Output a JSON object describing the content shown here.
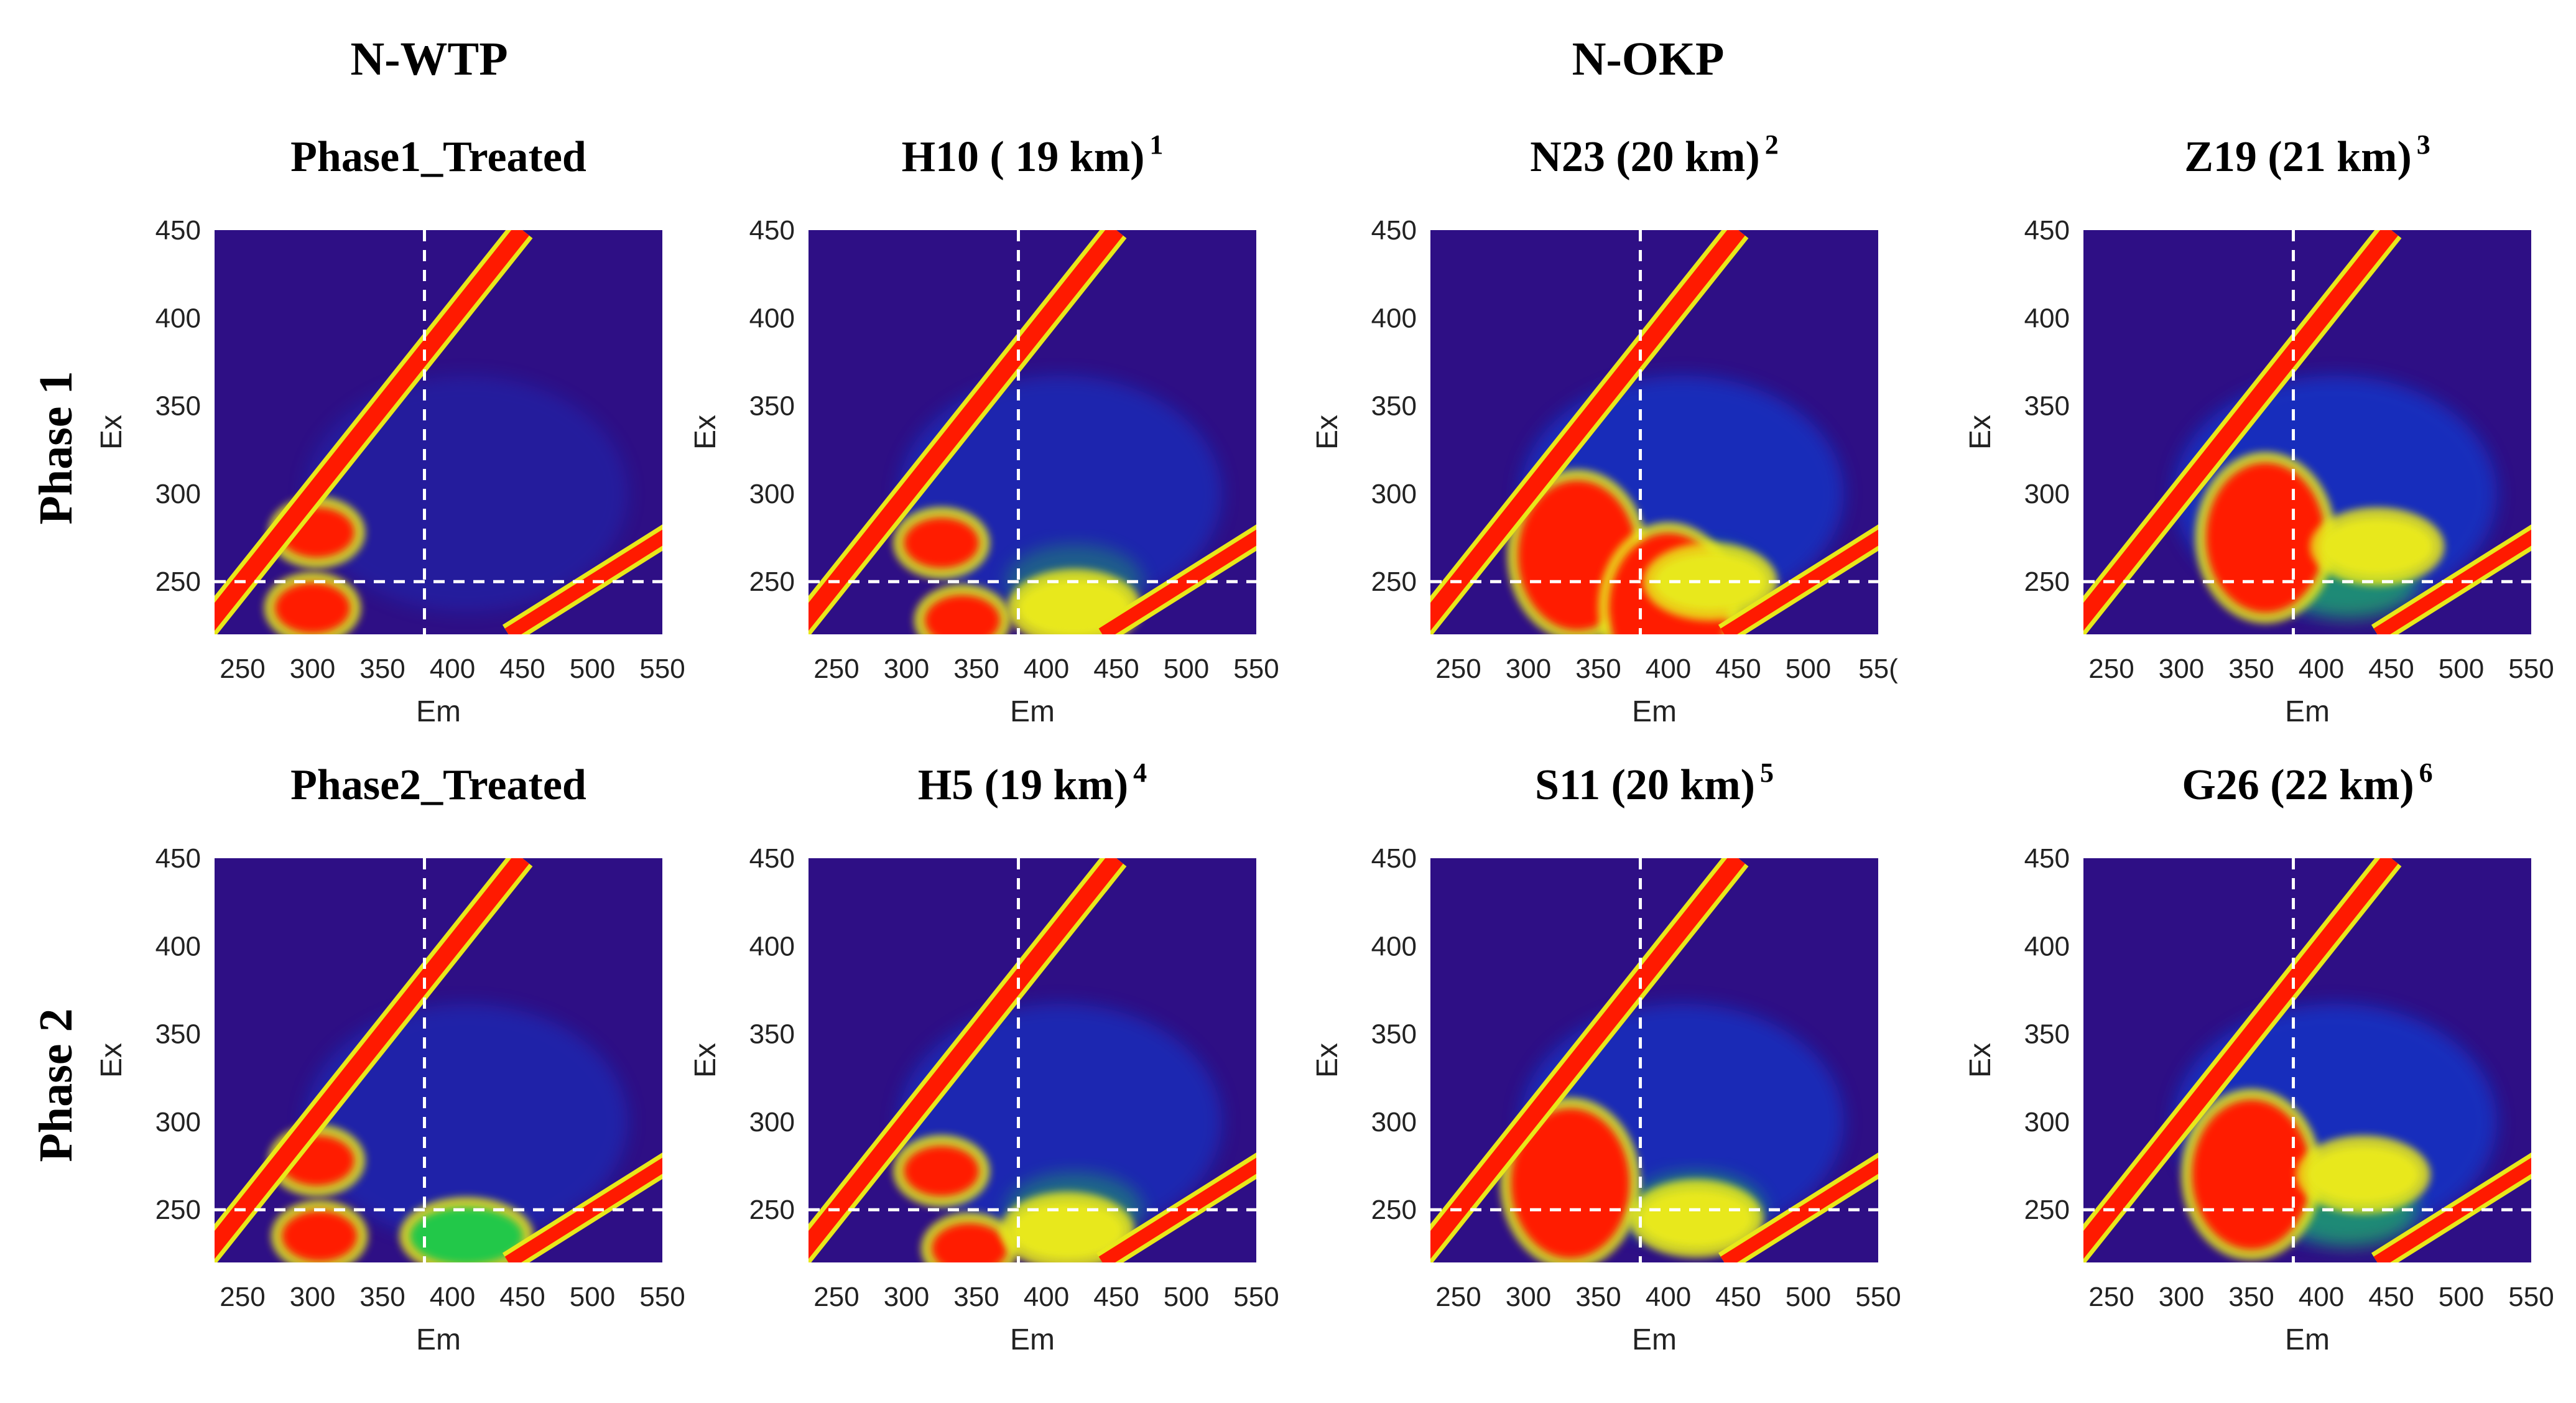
{
  "figure": {
    "group_headers": [
      "N-WTP",
      "N-OKP"
    ],
    "row_labels": [
      "Phase 1",
      "Phase 2"
    ],
    "colors": {
      "background": "#2e0f85",
      "blue": "#0a3cd8",
      "green": "#22c84a",
      "yellow": "#e8e81a",
      "red": "#ff1a00",
      "guide": "#ffffff"
    }
  },
  "chart_data": [
    {
      "type": "heatmap",
      "title": "Phase1_Treated",
      "superscript": "",
      "row": 1,
      "col": 1,
      "xlabel": "Em",
      "ylabel": "Ex",
      "xlim": [
        230,
        550
      ],
      "ylim": [
        220,
        450
      ],
      "xticks": [
        "250",
        "300",
        "350",
        "400",
        "450",
        "500",
        "550"
      ],
      "yticks": [
        "250",
        "300",
        "350",
        "400",
        "450"
      ],
      "guide_lines": {
        "em": 380,
        "ex": 250
      },
      "humic_intensity": 0.05,
      "peaks": [
        {
          "em": 303,
          "ex": 278,
          "level": "red"
        },
        {
          "em": 300,
          "ex": 235,
          "level": "red"
        }
      ]
    },
    {
      "type": "heatmap",
      "title": "H10  ( 19 km)",
      "superscript": "1",
      "row": 1,
      "col": 2,
      "xlabel": "Em",
      "ylabel": "Ex",
      "xlim": [
        230,
        550
      ],
      "ylim": [
        220,
        450
      ],
      "xticks": [
        "250",
        "300",
        "350",
        "400",
        "450",
        "500",
        "550"
      ],
      "yticks": [
        "250",
        "300",
        "350",
        "400",
        "450"
      ],
      "guide_lines": {
        "em": 380,
        "ex": 250
      },
      "humic_intensity": 0.35,
      "peaks": [
        {
          "em": 325,
          "ex": 272,
          "level": "red"
        },
        {
          "em": 340,
          "ex": 228,
          "level": "red"
        },
        {
          "em": 420,
          "ex": 235,
          "level": "yellow"
        }
      ]
    },
    {
      "type": "heatmap",
      "title": "N23  (20 km)",
      "superscript": "2",
      "row": 1,
      "col": 3,
      "xlabel": "Em",
      "ylabel": "Ex",
      "xlim": [
        230,
        550
      ],
      "ylim": [
        220,
        450
      ],
      "xticks": [
        "250",
        "300",
        "350",
        "400",
        "450",
        "500",
        "55("
      ],
      "yticks": [
        "250",
        "300",
        "350",
        "400",
        "450"
      ],
      "guide_lines": {
        "em": 380,
        "ex": 250
      },
      "humic_intensity": 0.55,
      "peaks": [
        {
          "em": 335,
          "ex": 265,
          "level": "red"
        },
        {
          "em": 400,
          "ex": 235,
          "level": "red"
        },
        {
          "em": 430,
          "ex": 250,
          "level": "yellow"
        }
      ]
    },
    {
      "type": "heatmap",
      "title": "Z19  (21 km)",
      "superscript": "3",
      "row": 1,
      "col": 4,
      "xlabel": "Em",
      "ylabel": "Ex",
      "xlim": [
        230,
        550
      ],
      "ylim": [
        220,
        450
      ],
      "xticks": [
        "250",
        "300",
        "350",
        "400",
        "450",
        "500",
        "550"
      ],
      "yticks": [
        "250",
        "300",
        "350",
        "400",
        "450"
      ],
      "guide_lines": {
        "em": 380,
        "ex": 250
      },
      "humic_intensity": 0.6,
      "peaks": [
        {
          "em": 360,
          "ex": 275,
          "level": "red"
        },
        {
          "em": 440,
          "ex": 270,
          "level": "yellow"
        }
      ]
    },
    {
      "type": "heatmap",
      "title": "Phase2_Treated",
      "superscript": "",
      "row": 2,
      "col": 1,
      "xlabel": "Em",
      "ylabel": "Ex",
      "xlim": [
        230,
        550
      ],
      "ylim": [
        220,
        450
      ],
      "xticks": [
        "250",
        "300",
        "350",
        "400",
        "450",
        "500",
        "550"
      ],
      "yticks": [
        "250",
        "300",
        "350",
        "400",
        "450"
      ],
      "guide_lines": {
        "em": 380,
        "ex": 250
      },
      "humic_intensity": 0.25,
      "peaks": [
        {
          "em": 303,
          "ex": 278,
          "level": "red"
        },
        {
          "em": 305,
          "ex": 235,
          "level": "red"
        },
        {
          "em": 410,
          "ex": 235,
          "level": "green"
        }
      ]
    },
    {
      "type": "heatmap",
      "title": "H5 (19 km)",
      "superscript": "4",
      "row": 2,
      "col": 2,
      "xlabel": "Em",
      "ylabel": "Ex",
      "xlim": [
        230,
        550
      ],
      "ylim": [
        220,
        450
      ],
      "xticks": [
        "250",
        "300",
        "350",
        "400",
        "450",
        "500",
        "550"
      ],
      "yticks": [
        "250",
        "300",
        "350",
        "400",
        "450"
      ],
      "guide_lines": {
        "em": 380,
        "ex": 250
      },
      "humic_intensity": 0.4,
      "peaks": [
        {
          "em": 325,
          "ex": 272,
          "level": "red"
        },
        {
          "em": 345,
          "ex": 228,
          "level": "red"
        },
        {
          "em": 415,
          "ex": 238,
          "level": "yellow"
        }
      ]
    },
    {
      "type": "heatmap",
      "title": "S11 (20 km)",
      "superscript": "5",
      "row": 2,
      "col": 3,
      "xlabel": "Em",
      "ylabel": "Ex",
      "xlim": [
        230,
        550
      ],
      "ylim": [
        220,
        450
      ],
      "xticks": [
        "250",
        "300",
        "350",
        "400",
        "450",
        "500",
        "550"
      ],
      "yticks": [
        "250",
        "300",
        "350",
        "400",
        "450"
      ],
      "guide_lines": {
        "em": 380,
        "ex": 250
      },
      "humic_intensity": 0.5,
      "peaks": [
        {
          "em": 330,
          "ex": 265,
          "level": "red"
        },
        {
          "em": 420,
          "ex": 245,
          "level": "yellow"
        }
      ]
    },
    {
      "type": "heatmap",
      "title": "G26 (22 km)",
      "superscript": "6",
      "row": 2,
      "col": 4,
      "xlabel": "Em",
      "ylabel": "Ex",
      "xlim": [
        230,
        550
      ],
      "ylim": [
        220,
        450
      ],
      "xticks": [
        "250",
        "300",
        "350",
        "400",
        "450",
        "500",
        "550"
      ],
      "yticks": [
        "250",
        "300",
        "350",
        "400",
        "450"
      ],
      "guide_lines": {
        "em": 380,
        "ex": 250
      },
      "humic_intensity": 0.6,
      "peaks": [
        {
          "em": 350,
          "ex": 270,
          "level": "red"
        },
        {
          "em": 430,
          "ex": 270,
          "level": "yellow"
        }
      ]
    }
  ]
}
